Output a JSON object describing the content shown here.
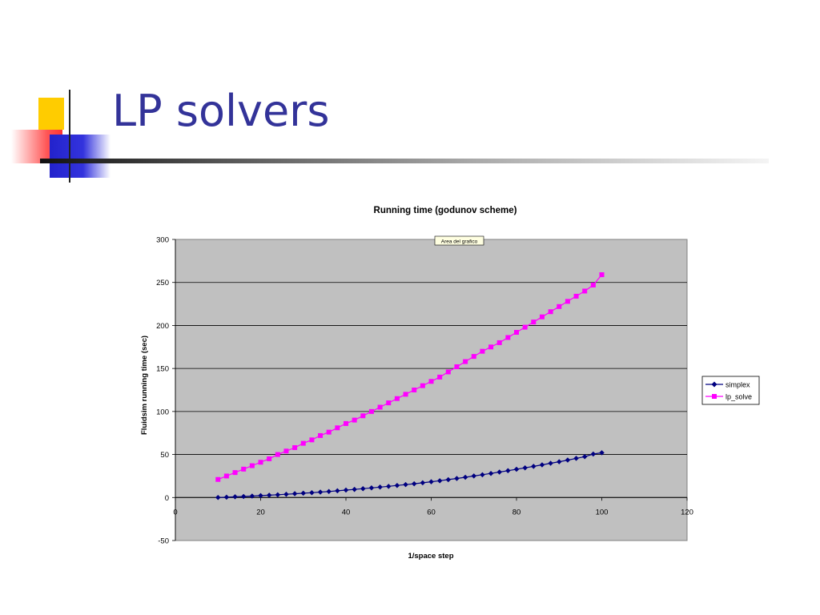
{
  "slide": {
    "title": "LP solvers"
  },
  "chart_data": {
    "type": "line",
    "title": "Running time (godunov scheme)",
    "xlabel": "1/space step",
    "ylabel": "Fluidsim running time (sec)",
    "xlim": [
      0,
      120
    ],
    "ylim": [
      -50,
      300
    ],
    "x_ticks": [
      0,
      20,
      40,
      60,
      80,
      100,
      120
    ],
    "y_ticks": [
      300,
      250,
      200,
      150,
      100,
      50,
      0,
      -50
    ],
    "grid": "horizontal",
    "plot_background": "#c0c0c0",
    "tooltip": "Area del grafico",
    "legend_position": "right",
    "series": [
      {
        "name": "simplex",
        "color": "#000080",
        "marker": "diamond",
        "x": [
          10,
          12,
          14,
          16,
          18,
          20,
          22,
          24,
          26,
          28,
          30,
          32,
          34,
          36,
          38,
          40,
          42,
          44,
          46,
          48,
          50,
          52,
          54,
          56,
          58,
          60,
          62,
          64,
          66,
          68,
          70,
          72,
          74,
          76,
          78,
          80,
          82,
          84,
          86,
          88,
          90,
          92,
          94,
          96,
          98,
          100
        ],
        "y": [
          0,
          0.4,
          0.8,
          1.2,
          1.7,
          2.2,
          2.7,
          3.2,
          3.8,
          4.4,
          5.0,
          5.6,
          6.3,
          7.0,
          7.8,
          8.6,
          9.4,
          10.3,
          11.2,
          12.1,
          13.0,
          14.0,
          15.0,
          16.0,
          17.1,
          18.3,
          19.5,
          20.8,
          22.1,
          23.5,
          25.0,
          26.5,
          28.0,
          29.6,
          31.2,
          32.8,
          34.5,
          36.2,
          38.0,
          39.8,
          41.6,
          43.5,
          45.5,
          47.5,
          50.5,
          52.0
        ]
      },
      {
        "name": "lp_solve",
        "color": "#ff00ff",
        "marker": "square",
        "x": [
          10,
          12,
          14,
          16,
          18,
          20,
          22,
          24,
          26,
          28,
          30,
          32,
          34,
          36,
          38,
          40,
          42,
          44,
          46,
          48,
          50,
          52,
          54,
          56,
          58,
          60,
          62,
          64,
          66,
          68,
          70,
          72,
          74,
          76,
          78,
          80,
          82,
          84,
          86,
          88,
          90,
          92,
          94,
          96,
          98,
          100
        ],
        "y": [
          21,
          25,
          29,
          33,
          37,
          41,
          45,
          50,
          54,
          58,
          63,
          67,
          72,
          76,
          81,
          86,
          90,
          95,
          100,
          105,
          110,
          115,
          120,
          125,
          130,
          135,
          140,
          146,
          152,
          158,
          164,
          170,
          175,
          180,
          186,
          192,
          198,
          204,
          210,
          216,
          222,
          228,
          234,
          240,
          247,
          259
        ]
      }
    ]
  }
}
